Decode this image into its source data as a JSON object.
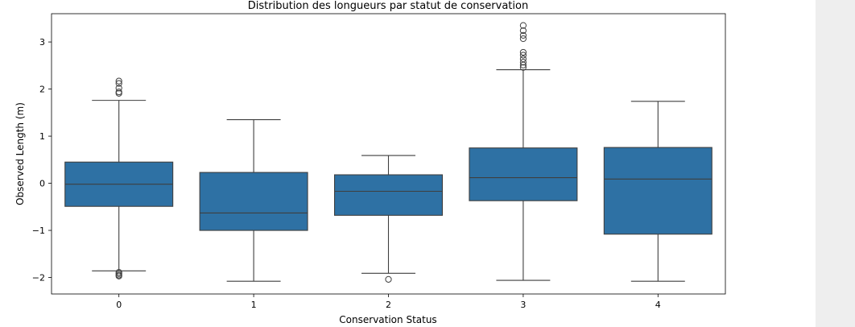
{
  "chart_data": {
    "type": "box",
    "title": "Distribution des longueurs par statut de conservation",
    "xlabel": "Conservation Status",
    "ylabel": "Observed Length (m)",
    "categories": [
      "0",
      "1",
      "2",
      "3",
      "4"
    ],
    "ylim": [
      -2.35,
      3.6
    ],
    "yticks": [
      -2,
      -1,
      0,
      1,
      2,
      3
    ],
    "ytick_labels": [
      "−2",
      "−1",
      "0",
      "1",
      "2",
      "3"
    ],
    "box_color": "#2e71a4",
    "line_color": "#3f3f3f",
    "boxes": [
      {
        "category": "0",
        "whisker_low": -1.86,
        "q1": -0.49,
        "median": -0.02,
        "q3": 0.45,
        "whisker_high": 1.76,
        "outliers": [
          -1.89,
          -1.92,
          -1.95,
          -1.97,
          1.91,
          1.94,
          2.02,
          2.12,
          2.17
        ]
      },
      {
        "category": "1",
        "whisker_low": -2.08,
        "q1": -1.0,
        "median": -0.63,
        "q3": 0.23,
        "whisker_high": 1.35,
        "outliers": []
      },
      {
        "category": "2",
        "whisker_low": -1.91,
        "q1": -0.68,
        "median": -0.17,
        "q3": 0.18,
        "whisker_high": 0.59,
        "outliers": [
          -2.04
        ]
      },
      {
        "category": "3",
        "whisker_low": -2.06,
        "q1": -0.37,
        "median": 0.12,
        "q3": 0.75,
        "whisker_high": 2.41,
        "outliers": [
          2.46,
          2.51,
          2.57,
          2.64,
          2.72,
          2.78,
          3.07,
          3.14,
          3.24,
          3.35
        ]
      },
      {
        "category": "4",
        "whisker_low": -2.08,
        "q1": -1.08,
        "median": 0.09,
        "q3": 0.76,
        "whisker_high": 1.74,
        "outliers": []
      }
    ]
  }
}
